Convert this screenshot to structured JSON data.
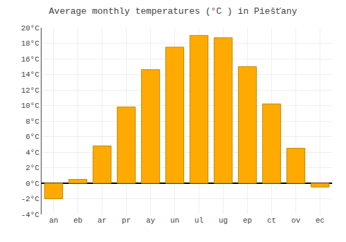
{
  "chart_data": {
    "type": "bar",
    "title": "Average monthly temperatures (°C ) in Piešťany",
    "categories": [
      "an",
      "eb",
      "ar",
      "pr",
      "ay",
      "un",
      "ul",
      "ug",
      "ep",
      "ct",
      "ov",
      "ec"
    ],
    "values": [
      -2.0,
      0.5,
      4.8,
      9.8,
      14.6,
      17.5,
      19.0,
      18.7,
      15.0,
      10.2,
      4.5,
      -0.5
    ],
    "color": "#FFAA00",
    "ylim": [
      -4,
      20
    ],
    "yticks": [
      {
        "value": -4,
        "label": "-4°C"
      },
      {
        "value": -2,
        "label": "-2°C"
      },
      {
        "value": 0,
        "label": "0°C"
      },
      {
        "value": 2,
        "label": "2°C"
      },
      {
        "value": 4,
        "label": "4°C"
      },
      {
        "value": 6,
        "label": "6°C"
      },
      {
        "value": 8,
        "label": "8°C"
      },
      {
        "value": 10,
        "label": "10°C"
      },
      {
        "value": 12,
        "label": "12°C"
      },
      {
        "value": 14,
        "label": "14°C"
      },
      {
        "value": 16,
        "label": "16°C"
      },
      {
        "value": 18,
        "label": "18°C"
      },
      {
        "value": 20,
        "label": "20°C"
      }
    ],
    "grid": true
  }
}
